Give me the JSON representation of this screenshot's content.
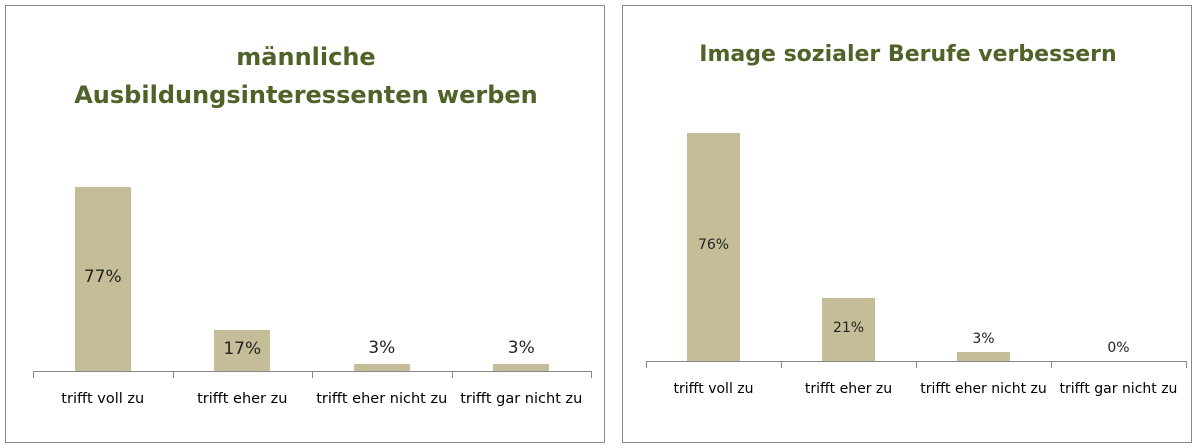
{
  "chart_data": [
    {
      "type": "bar",
      "title": "männliche Ausbildungsinteressenten werben",
      "categories": [
        "trifft voll zu",
        "trifft eher zu",
        "trifft eher nicht zu",
        "trifft gar nicht zu"
      ],
      "values": [
        77,
        17,
        3,
        3
      ],
      "value_labels": [
        "77%",
        "17%",
        "3%",
        "3%"
      ],
      "color": "#c4bd97"
    },
    {
      "type": "bar",
      "title": "Image sozialer Berufe verbessern",
      "categories": [
        "trifft voll zu",
        "trifft eher zu",
        "trifft eher nicht zu",
        "trifft gar nicht zu"
      ],
      "values": [
        76,
        21,
        3,
        0
      ],
      "value_labels": [
        "76%",
        "21%",
        "3%",
        "0%"
      ],
      "color": "#c4bd97"
    }
  ]
}
